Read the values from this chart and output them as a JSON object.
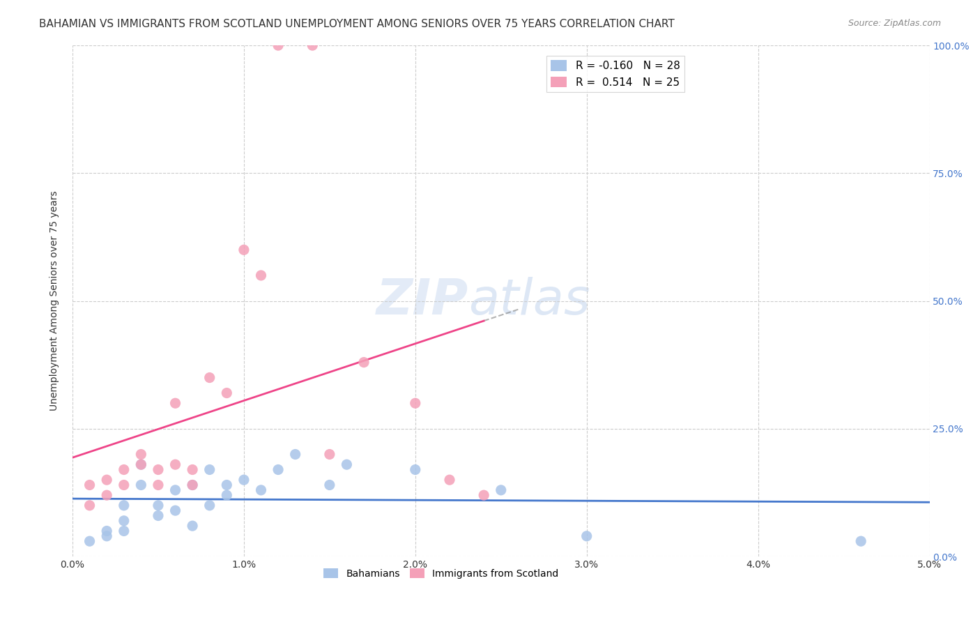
{
  "title": "BAHAMIAN VS IMMIGRANTS FROM SCOTLAND UNEMPLOYMENT AMONG SENIORS OVER 75 YEARS CORRELATION CHART",
  "source": "Source: ZipAtlas.com",
  "ylabel": "Unemployment Among Seniors over 75 years",
  "ylabel_right_ticks": [
    "0.0%",
    "25.0%",
    "50.0%",
    "75.0%",
    "100.0%"
  ],
  "ylabel_right_vals": [
    0,
    0.25,
    0.5,
    0.75,
    1.0
  ],
  "xmin": 0.0,
  "xmax": 0.05,
  "ymin": 0.0,
  "ymax": 1.0,
  "legend_blue_r": "-0.160",
  "legend_blue_n": "28",
  "legend_pink_r": "0.514",
  "legend_pink_n": "25",
  "blue_color": "#a8c4e8",
  "pink_color": "#f4a0b8",
  "blue_line_color": "#4477cc",
  "pink_line_color": "#ee4488",
  "bahamians_x": [
    0.001,
    0.002,
    0.002,
    0.003,
    0.003,
    0.003,
    0.004,
    0.004,
    0.005,
    0.005,
    0.006,
    0.006,
    0.007,
    0.007,
    0.008,
    0.008,
    0.009,
    0.009,
    0.01,
    0.011,
    0.012,
    0.013,
    0.015,
    0.016,
    0.02,
    0.025,
    0.03,
    0.046
  ],
  "bahamians_y": [
    0.03,
    0.05,
    0.04,
    0.1,
    0.07,
    0.05,
    0.18,
    0.14,
    0.1,
    0.08,
    0.13,
    0.09,
    0.14,
    0.06,
    0.17,
    0.1,
    0.14,
    0.12,
    0.15,
    0.13,
    0.17,
    0.2,
    0.14,
    0.18,
    0.17,
    0.13,
    0.04,
    0.03
  ],
  "scotland_x": [
    0.001,
    0.001,
    0.002,
    0.002,
    0.003,
    0.003,
    0.004,
    0.004,
    0.005,
    0.005,
    0.006,
    0.006,
    0.007,
    0.007,
    0.008,
    0.009,
    0.01,
    0.011,
    0.012,
    0.014,
    0.015,
    0.017,
    0.02,
    0.022,
    0.024
  ],
  "scotland_y": [
    0.1,
    0.14,
    0.12,
    0.15,
    0.17,
    0.14,
    0.2,
    0.18,
    0.14,
    0.17,
    0.3,
    0.18,
    0.17,
    0.14,
    0.35,
    0.32,
    0.6,
    0.55,
    1.0,
    1.0,
    0.2,
    0.38,
    0.3,
    0.15,
    0.12
  ]
}
